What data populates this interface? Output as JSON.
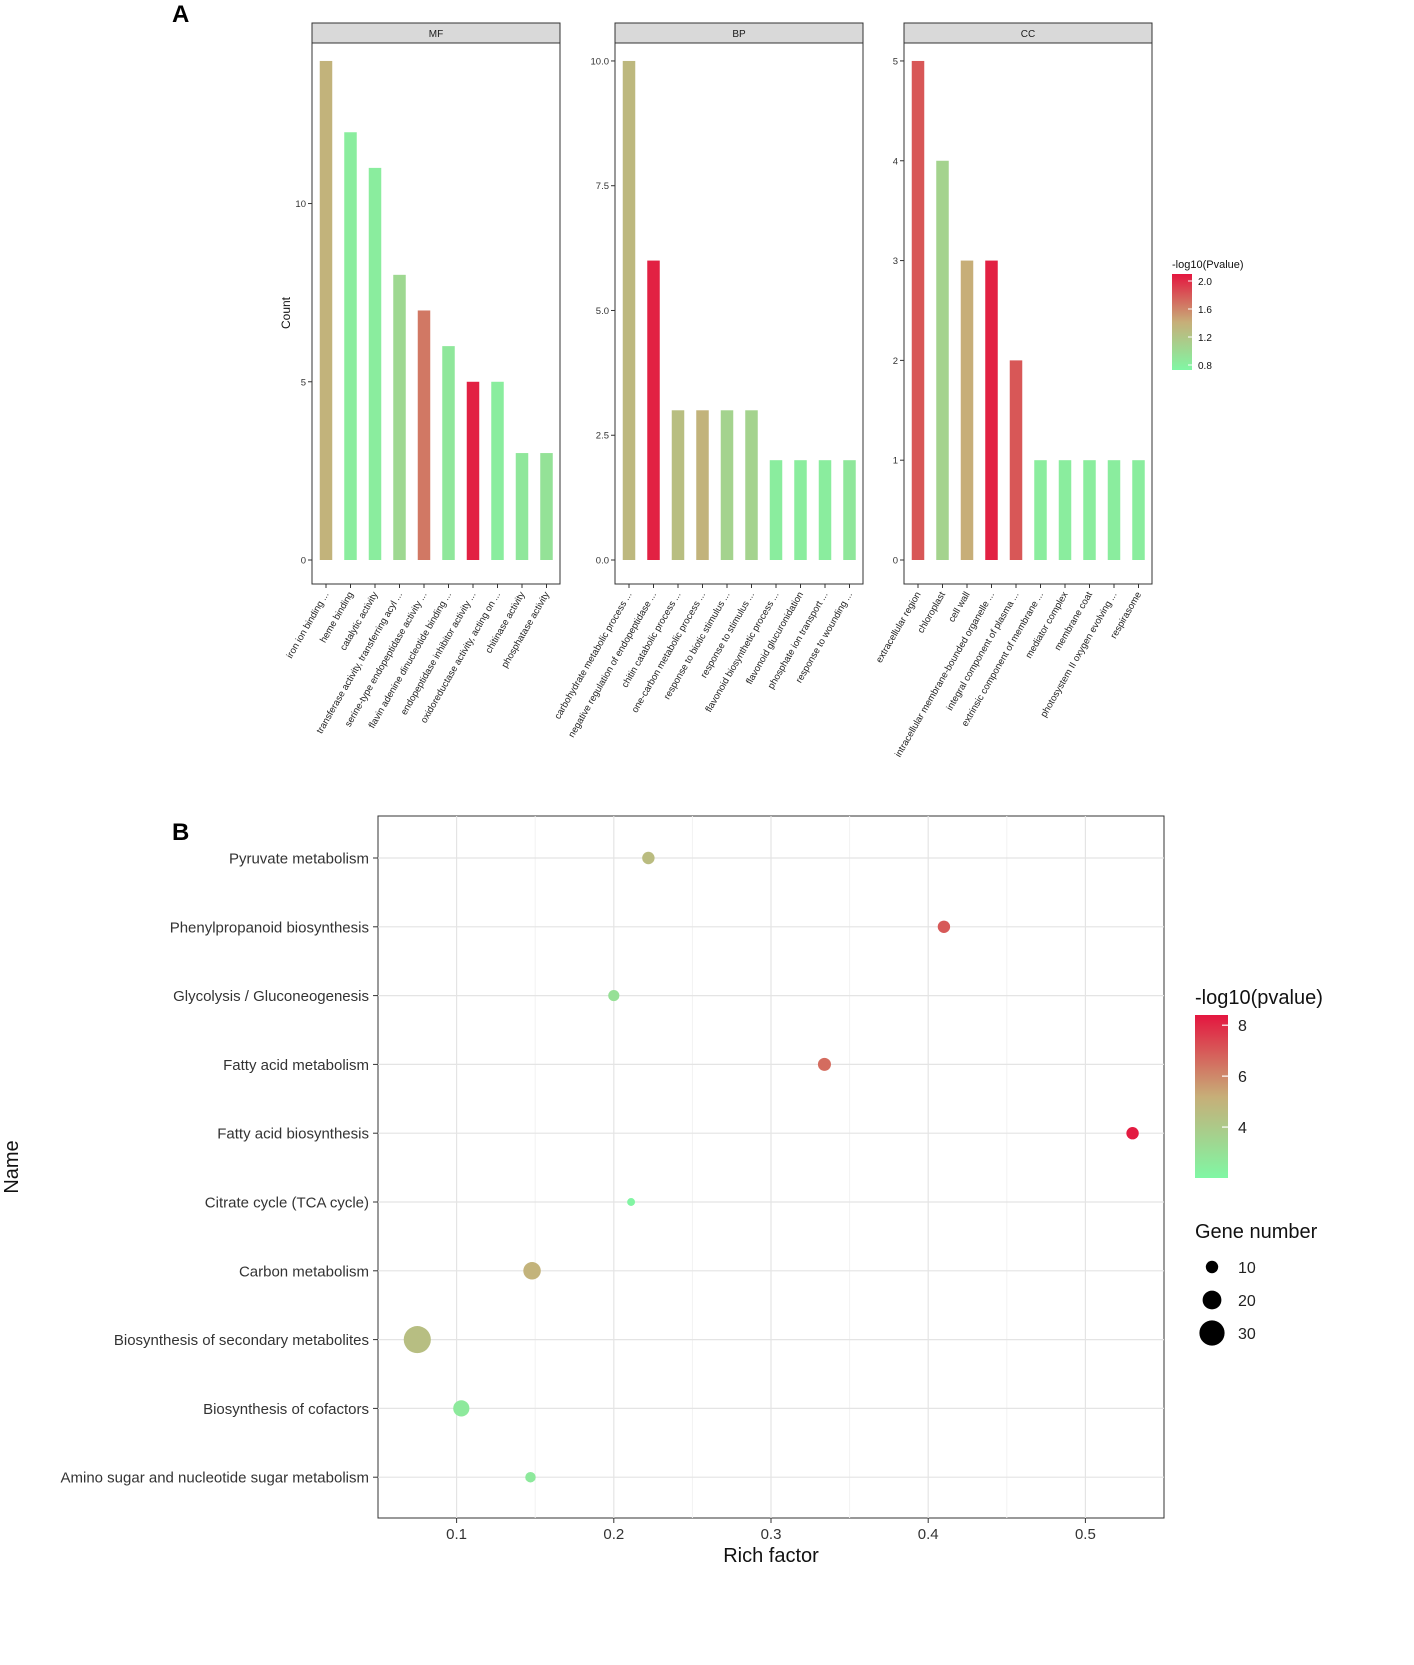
{
  "figure": {
    "label_a": "A",
    "label_b": "B"
  },
  "chart_data": [
    {
      "type": "bar",
      "panel": "A",
      "ylabel": "Count",
      "legend": {
        "title": "-log10(Pvalue)",
        "ticks": [
          "2.0",
          "1.6",
          "1.2",
          "0.8"
        ],
        "range": [
          0.7,
          2.1
        ],
        "position": "right"
      },
      "color_scale": {
        "low": "#80F7A4",
        "mid": "#C7AE78",
        "high": "#E4163F"
      },
      "facets": [
        {
          "name": "MF",
          "ylim": [
            0,
            14.7
          ],
          "yticks": [
            0,
            5,
            10
          ],
          "ytick_labels": [
            "0",
            "5",
            "10"
          ],
          "categories": [
            "iron ion binding ...",
            "heme binding",
            "catalytic activity",
            "transferase activity, transferring acyl ...",
            "serine-type endopeptidase activity ...",
            "flavin adenine dinucleotide binding ...",
            "endopeptidase inhibitor activity ...",
            "oxidoreductase activity, acting on ...",
            "chitinase activity",
            "phosphatase activity"
          ],
          "values": [
            14,
            12,
            11,
            8,
            7,
            6,
            5,
            5,
            3,
            3
          ],
          "colors": [
            1.35,
            0.8,
            0.8,
            1.0,
            1.65,
            0.85,
            2.05,
            0.8,
            0.85,
            0.9
          ]
        },
        {
          "name": "BP",
          "ylim": [
            0,
            10.5
          ],
          "yticks": [
            0,
            2.5,
            5,
            7.5,
            10
          ],
          "ytick_labels": [
            "0.0",
            "2.5",
            "5.0",
            "7.5",
            "10.0"
          ],
          "categories": [
            "carbohydrate metabolic process ...",
            "negative regulation of endopeptidase ...",
            "chitin catabolic process ...",
            "one-carbon metabolic process ...",
            "response to biotic stimulus ...",
            "response to stimulus ...",
            "flavonoid biosynthetic process ...",
            "flavonoid glucuronidation",
            "phosphate ion transport ...",
            "response to wounding ..."
          ],
          "values": [
            10,
            6,
            3,
            3,
            3,
            3,
            2,
            2,
            2,
            2
          ],
          "colors": [
            1.3,
            2.05,
            1.25,
            1.35,
            1.05,
            1.05,
            0.8,
            0.8,
            0.8,
            0.85
          ]
        },
        {
          "name": "CC",
          "ylim": [
            0,
            5.25
          ],
          "yticks": [
            0,
            1,
            2,
            3,
            4,
            5
          ],
          "ytick_labels": [
            "0",
            "1",
            "2",
            "3",
            "4",
            "5"
          ],
          "categories": [
            "extracellular region",
            "chloroplast",
            "cell wall",
            "intracellular membrane-bounded organelle ...",
            "integral component of plasma ...",
            "extrinsic component of membrane ...",
            "mediator complex",
            "membrane coat",
            "photosystem II oxygen evolving ...",
            "respirasome"
          ],
          "values": [
            5,
            4,
            3,
            3,
            2,
            1,
            1,
            1,
            1,
            1
          ],
          "colors": [
            1.8,
            1.05,
            1.4,
            2.05,
            1.8,
            0.8,
            0.8,
            0.8,
            0.8,
            0.8
          ]
        }
      ]
    },
    {
      "type": "scatter",
      "panel": "B",
      "xlabel": "Rich factor",
      "ylabel": "Name",
      "xlim": [
        0.05,
        0.55
      ],
      "xticks": [
        0.1,
        0.2,
        0.3,
        0.4,
        0.5
      ],
      "xtick_labels": [
        "0.1",
        "0.2",
        "0.3",
        "0.4",
        "0.5"
      ],
      "color_scale": {
        "low": "#80F7A4",
        "mid": "#C7AE78",
        "high": "#E4163F"
      },
      "color_legend": {
        "title": "-log10(pvalue)",
        "ticks": [
          8,
          6,
          4
        ],
        "tick_labels": [
          "8",
          "6",
          "4"
        ],
        "range": [
          2,
          8.4
        ],
        "position": "right"
      },
      "size_legend": {
        "title": "Gene number",
        "ticks": [
          10,
          20,
          30
        ],
        "tick_labels": [
          "10",
          "20",
          "30"
        ],
        "position": "right"
      },
      "categories": [
        "Pyruvate metabolism",
        "Phenylpropanoid biosynthesis",
        "Glycolysis / Gluconeogenesis",
        "Fatty acid metabolism",
        "Fatty acid biosynthesis",
        "Citrate cycle (TCA cycle)",
        "Carbon metabolism",
        "Biosynthesis of secondary metabolites",
        "Biosynthesis of cofactors",
        "Amino sugar and nucleotide sugar metabolism"
      ],
      "x": [
        0.222,
        0.41,
        0.2,
        0.334,
        0.53,
        0.211,
        0.148,
        0.075,
        0.103,
        0.147
      ],
      "pvalue": [
        4.6,
        7.0,
        3.0,
        6.6,
        8.3,
        2.1,
        5.0,
        4.5,
        2.6,
        2.6
      ],
      "gene_number": [
        10,
        10,
        8,
        11,
        10,
        3,
        18,
        33,
        16,
        7
      ]
    }
  ]
}
